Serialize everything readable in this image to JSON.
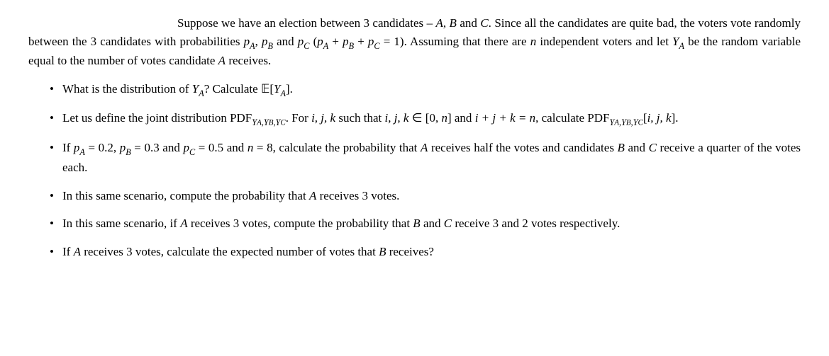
{
  "intro": {
    "text_part1": "Suppose we have an election between 3 candidates – ",
    "cands": "A",
    "sep1": ", ",
    "candB": "B",
    "sep2": " and ",
    "candC": "C",
    "text_part2": ". Since all the candidates are quite bad, the voters vote randomly between the 3 candidates with probabilities ",
    "pA": "p",
    "pA_sub": "A",
    "comma1": ", ",
    "pB": "p",
    "pB_sub": "B",
    "and_text": " and ",
    "pC": "p",
    "pC_sub": "C",
    "open_paren": " (",
    "eq_pA": "p",
    "eq_pA_sub": "A",
    "plus1": " + ",
    "eq_pB": "p",
    "eq_pB_sub": "B",
    "plus2": " + ",
    "eq_pC": "p",
    "eq_pC_sub": "C",
    "eq_one": " = 1). Assuming that there are ",
    "n_var": "n",
    "indep_text": " independent voters and let ",
    "YA": "Y",
    "YA_sub": "A",
    "be_rand": " be the random variable equal to the number of votes candidate ",
    "candA_end": "A",
    "receives": " receives."
  },
  "bullets": {
    "b1": {
      "t1": "What is the distribution of ",
      "YA": "Y",
      "YA_sub": "A",
      "t2": "? Calculate ",
      "E": "𝔼",
      "br_open": "[",
      "YA2": "Y",
      "YA2_sub": "A",
      "br_close": "].",
      "end": ""
    },
    "b2": {
      "t1": "Let us define the joint distribution ",
      "pdf1": "PDF",
      "pdf1_sub": "Y",
      "pdf1_subA": "A",
      "pdf1_c1": ",",
      "pdf1_subY2": "Y",
      "pdf1_subB": "B",
      "pdf1_c2": ",",
      "pdf1_subY3": "Y",
      "pdf1_subC": "C",
      "t2": ". For ",
      "ijk": "i, j, k",
      "t3": " such that ",
      "ijk2": "i, j, k",
      "in": " ∈ [0, ",
      "n": "n",
      "close": "] and ",
      "sum": "i + j + k = n",
      "t4": ", calculate ",
      "pdf2": "PDF",
      "pdf2_sub": "Y",
      "pdf2_subA": "A",
      "pdf2_c1": ",",
      "pdf2_subY2": "Y",
      "pdf2_subB": "B",
      "pdf2_c2": ",",
      "pdf2_subY3": "Y",
      "pdf2_subC": "C",
      "args": "[",
      "ijk3": "i, j, k",
      "args_close": "]."
    },
    "b3": {
      "t1": "If ",
      "pA": "p",
      "pA_sub": "A",
      "v1": " = 0.2, ",
      "pB": "p",
      "pB_sub": "B",
      "v2": " = 0.3 and ",
      "pC": "p",
      "pC_sub": "C",
      "v3": " = 0.5 and ",
      "n": "n",
      "v4": " = 8, calculate the probability that ",
      "A": "A",
      "t2": " receives half the votes and candidates ",
      "B": "B",
      "and": " and ",
      "C": "C",
      "t3": " receive a quarter of the votes each."
    },
    "b4": {
      "t1": "In this same scenario, compute the probability that ",
      "A": "A",
      "t2": " receives 3 votes."
    },
    "b5": {
      "t1": "In this same scenario, if ",
      "A": "A",
      "t2": " receives 3 votes, compute the probability that ",
      "B": "B",
      "and": " and ",
      "C": "C",
      "t3": " receive 3 and 2 votes respectively."
    },
    "b6": {
      "t1": "If ",
      "A": "A",
      "t2": " receives 3 votes, calculate the expected number of votes that ",
      "B": "B",
      "t3": " receives?"
    }
  }
}
